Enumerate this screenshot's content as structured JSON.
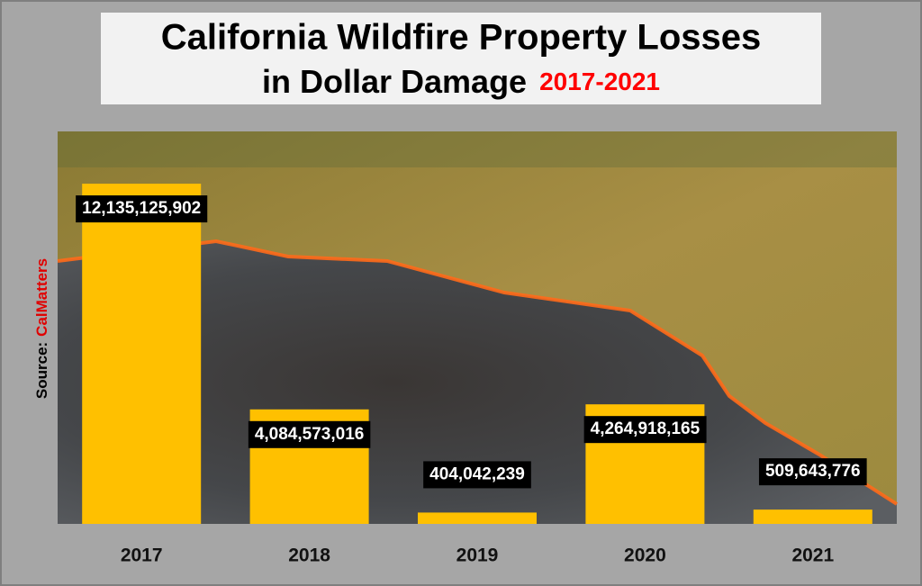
{
  "chart_data": {
    "type": "bar",
    "title": "California Wildfire Property Losses",
    "subtitle": "in Dollar Damage",
    "title_years": "2017-2021",
    "source_label": "Source:",
    "source": "CalMatters",
    "categories": [
      "2017",
      "2018",
      "2019",
      "2020",
      "2021"
    ],
    "values": [
      12135125902,
      4084573016,
      404042239,
      4264918165,
      509643776
    ],
    "value_labels": [
      "12,135,125,902",
      "4,084,573,016",
      "404,042,239",
      "4,264,918,165",
      "509,643,776"
    ],
    "color": "#ffc000",
    "ylim": [
      0,
      14000000000
    ]
  }
}
